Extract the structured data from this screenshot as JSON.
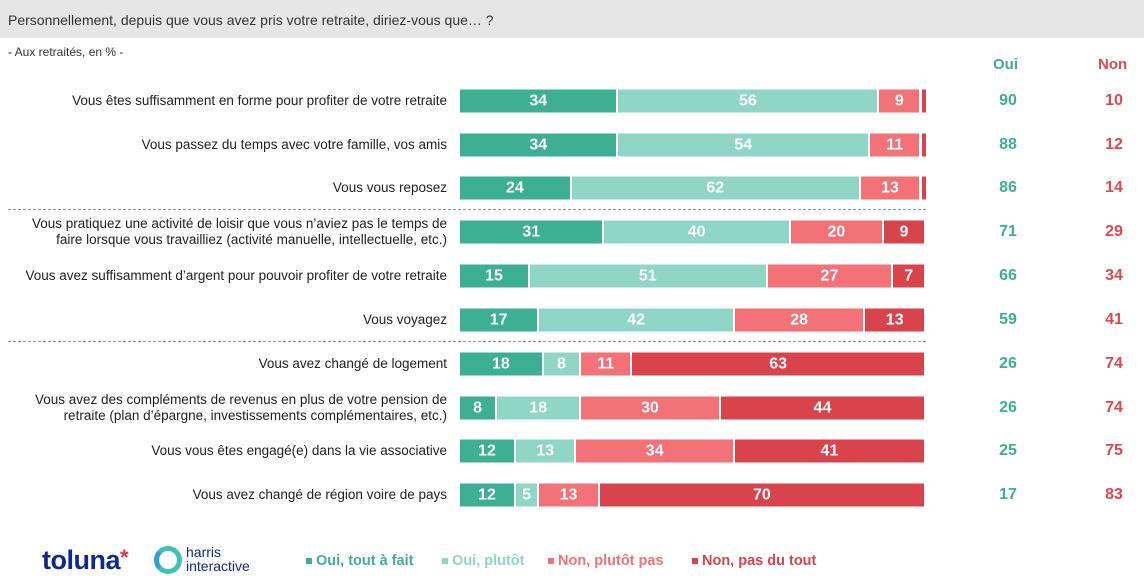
{
  "question": "Personnellement, depuis que vous avez pris votre retraite, diriez-vous que… ?",
  "subtitle": "- Aux retraités, en % -",
  "columns": {
    "oui": "Oui",
    "non": "Non"
  },
  "logos": {
    "toluna": "toluna",
    "harris": "harris interactive"
  },
  "colors": {
    "oui_tout": "#3daf92",
    "oui_plutot": "#8fd6c6",
    "non_plutot": "#f27277",
    "non_pas": "#d9444c",
    "oui_text": "#3daf92",
    "non_text": "#e0474f"
  },
  "chart_data": {
    "type": "bar",
    "orientation": "horizontal-stacked-100",
    "legend_position": "bottom",
    "series": [
      {
        "name": "Oui, tout à fait",
        "values": [
          34,
          34,
          24,
          31,
          15,
          17,
          18,
          8,
          12,
          12
        ]
      },
      {
        "name": "Oui, plutôt",
        "values": [
          56,
          54,
          62,
          40,
          51,
          42,
          8,
          18,
          13,
          5
        ]
      },
      {
        "name": "Non, plutôt pas",
        "values": [
          9,
          11,
          13,
          20,
          27,
          28,
          11,
          30,
          34,
          13
        ]
      },
      {
        "name": "Non, pas du tout",
        "values": [
          1,
          1,
          1,
          9,
          7,
          13,
          63,
          44,
          41,
          70
        ]
      }
    ],
    "categories": [
      "Vous êtes suffisamment en forme pour profiter de votre retraite",
      "Vous passez du temps avec votre famille, vos amis",
      "Vous vous reposez",
      "Vous pratiquez une activité de loisir que vous n’aviez pas le temps de faire lorsque vous travailliez (activité manuelle, intellectuelle, etc.)",
      "Vous avez suffisamment d’argent pour pouvoir profiter de votre retraite",
      "Vous voyagez",
      "Vous avez changé de logement",
      "Vous avez des compléments de revenus en plus de votre pension de retraite (plan d’épargne, investissements complémentaires, etc.)",
      "Vous vous êtes engagé(e) dans la vie associative",
      "Vous avez changé de région voire de pays"
    ],
    "totals_oui": [
      90,
      88,
      86,
      71,
      66,
      59,
      26,
      26,
      25,
      17
    ],
    "totals_non": [
      10,
      12,
      14,
      29,
      34,
      41,
      74,
      74,
      75,
      83
    ]
  }
}
